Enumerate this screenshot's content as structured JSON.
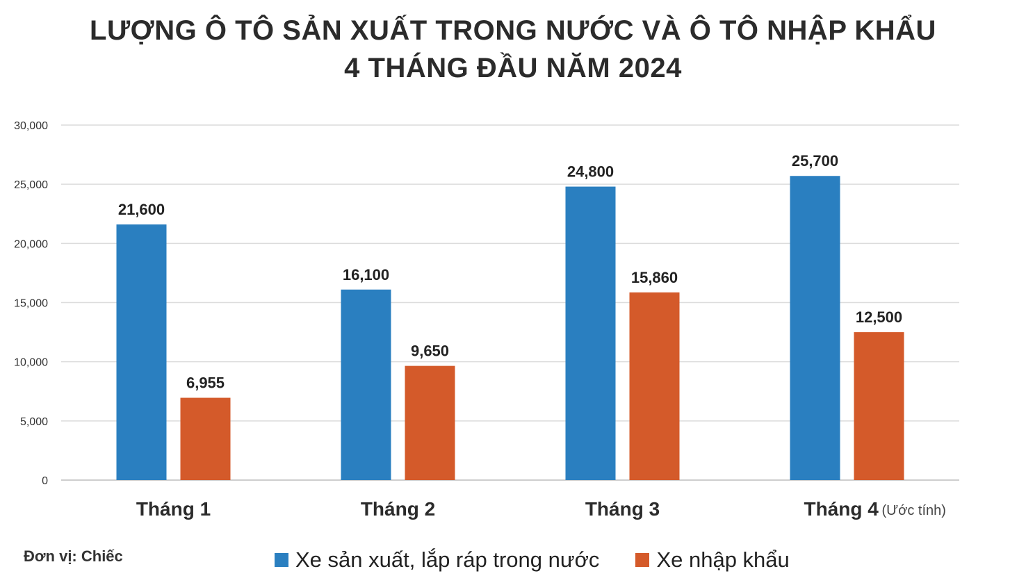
{
  "chart_data": {
    "type": "bar",
    "title": "LƯỢNG Ô TÔ SẢN XUẤT TRONG NƯỚC VÀ Ô TÔ NHẬP KHẨU",
    "subtitle": "4 THÁNG ĐẦU NĂM 2024",
    "categories": [
      "Tháng 1",
      "Tháng 2",
      "Tháng 3",
      "Tháng 4"
    ],
    "category_notes": [
      "",
      "",
      "",
      "(Ước tính)"
    ],
    "series": [
      {
        "name": "Xe sản xuất, lắp ráp trong nước",
        "color": "#2a7fc0",
        "values": [
          21600,
          16100,
          24800,
          25700
        ],
        "labels": [
          "21,600",
          "16,100",
          "24,800",
          "25,700"
        ]
      },
      {
        "name": "Xe nhập khẩu",
        "color": "#d45a2a",
        "values": [
          6955,
          9650,
          15860,
          12500
        ],
        "labels": [
          "6,955",
          "9,650",
          "15,860",
          "12,500"
        ]
      }
    ],
    "ylim": [
      0,
      30000
    ],
    "yticks": [
      0,
      5000,
      10000,
      15000,
      20000,
      25000,
      30000
    ],
    "ytick_labels": [
      "0",
      "5,000",
      "10,000",
      "15,000",
      "20,000",
      "25,000",
      "30,000"
    ],
    "grid": true,
    "legend_position": "bottom",
    "unit_label": "Đơn vị: Chiếc"
  }
}
